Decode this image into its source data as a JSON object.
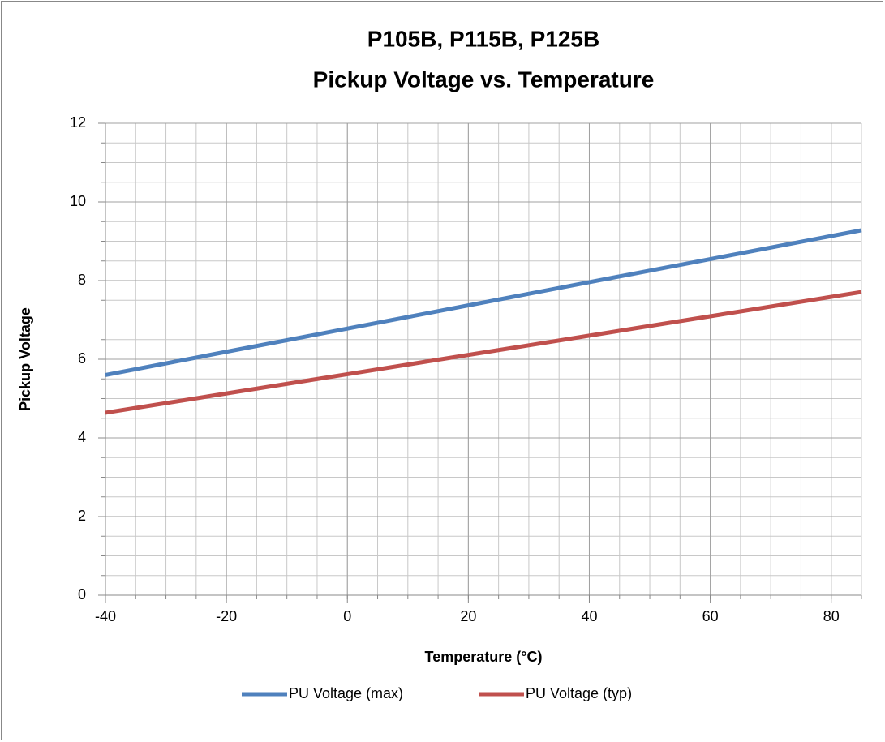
{
  "chart_data": {
    "type": "line",
    "title": [
      "P105B, P115B, P125B",
      "Pickup Voltage vs. Temperature"
    ],
    "xlabel": "Temperature (°C)",
    "ylabel": "Pickup Voltage",
    "x": [
      -40,
      0,
      40,
      85
    ],
    "series": [
      {
        "name": "PU Voltage (max)",
        "color": "#4f81bd",
        "values": [
          5.6,
          6.78,
          7.96,
          9.28
        ]
      },
      {
        "name": "PU Voltage (typ)",
        "color": "#c0504d",
        "values": [
          4.64,
          5.62,
          6.6,
          7.71
        ]
      }
    ],
    "xlim": [
      -40,
      85
    ],
    "xticks": [
      -40,
      -20,
      0,
      20,
      40,
      60,
      80
    ],
    "ylim": [
      0,
      12
    ],
    "yticks": [
      0,
      2,
      4,
      6,
      8,
      10,
      12
    ],
    "grid": true,
    "minor_grid": {
      "x": 5,
      "y": 0.5
    },
    "legend": "bottom"
  }
}
